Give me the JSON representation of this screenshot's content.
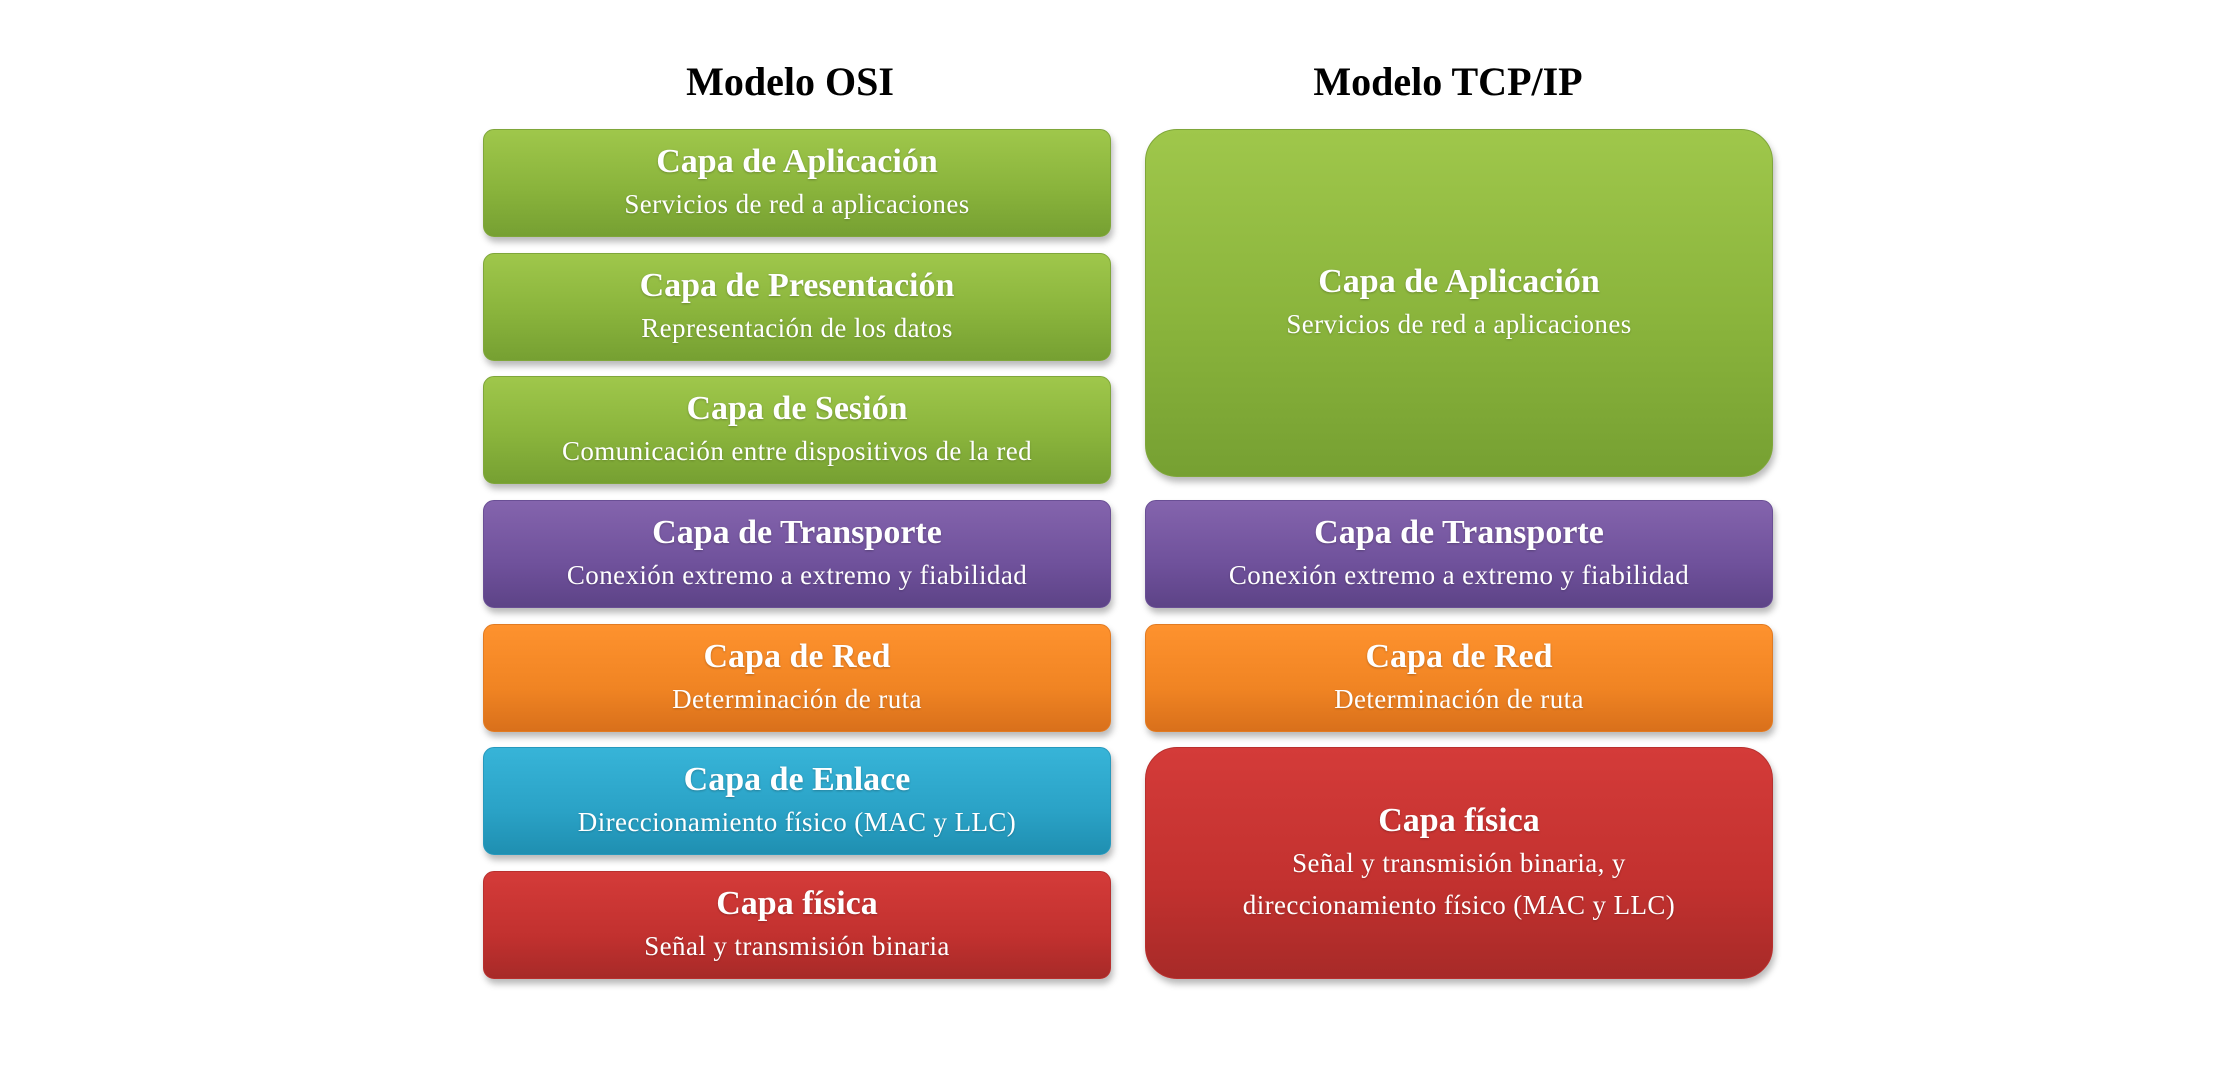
{
  "osi": {
    "title": "Modelo OSI",
    "layers": [
      {
        "name": "Capa de Aplicación",
        "desc": "Servicios de red a aplicaciones",
        "color": "#8ab43c"
      },
      {
        "name": "Capa de Presentación",
        "desc": "Representación de los datos",
        "color": "#8ab43c"
      },
      {
        "name": "Capa de Sesión",
        "desc": "Comunicación entre dispositivos de la red",
        "color": "#8ab43c"
      },
      {
        "name": "Capa de Transporte",
        "desc": "Conexión extremo a extremo y fiabilidad",
        "color": "#6f519b"
      },
      {
        "name": "Capa de Red",
        "desc": "Determinación de ruta",
        "color": "#f08423"
      },
      {
        "name": "Capa de Enlace",
        "desc": "Direccionamiento físico (MAC y LLC)",
        "color": "#2aa2c6"
      },
      {
        "name": "Capa física",
        "desc": "Señal y transmisión binaria",
        "color": "#c2312f"
      }
    ]
  },
  "tcpip": {
    "title": "Modelo TCP/IP",
    "layers": [
      {
        "name": "Capa de Aplicación",
        "desc": "Servicios de red a aplicaciones",
        "color": "#8ab43c"
      },
      {
        "name": "Capa de Transporte",
        "desc": "Conexión extremo a extremo y fiabilidad",
        "color": "#6f519b"
      },
      {
        "name": "Capa de Red",
        "desc": "Determinación de ruta",
        "color": "#f08423"
      },
      {
        "name": "Capa física",
        "desc": "Señal y transmisión binaria, y\ndireccionamiento físico (MAC y LLC)",
        "color": "#c2312f"
      }
    ]
  }
}
